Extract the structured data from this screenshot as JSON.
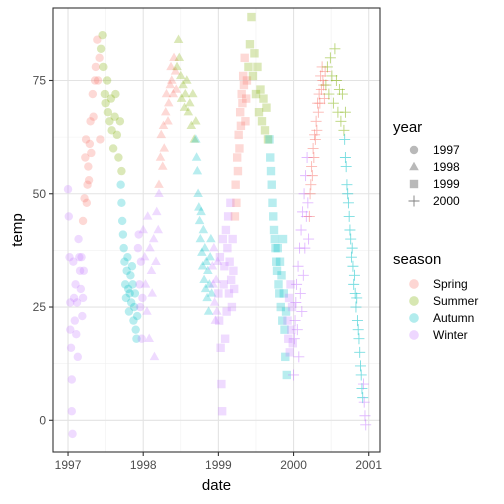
{
  "chart_data": {
    "type": "scatter",
    "xlabel": "date",
    "ylabel": "temp",
    "x_ticks": [
      "1997",
      "1998",
      "1999",
      "2000",
      "2001"
    ],
    "y_ticks": [
      0,
      25,
      50,
      75
    ],
    "xlim": [
      1996.8,
      2001.15
    ],
    "ylim": [
      -7,
      91
    ],
    "grid": true,
    "point_opacity": 0.28,
    "legend_position": "right",
    "shape_legend": {
      "title": "year",
      "entries": [
        {
          "label": "1997",
          "shape": "circle"
        },
        {
          "label": "1998",
          "shape": "triangle"
        },
        {
          "label": "1999",
          "shape": "square"
        },
        {
          "label": "2000",
          "shape": "plus"
        }
      ]
    },
    "color_legend": {
      "title": "season",
      "entries": [
        {
          "label": "Spring",
          "color": "#F8766D"
        },
        {
          "label": "Summer",
          "color": "#7CAE00"
        },
        {
          "label": "Autumn",
          "color": "#00BFC4"
        },
        {
          "label": "Winter",
          "color": "#C77CFF"
        }
      ]
    },
    "series": [
      {
        "year": "1997",
        "season": "Winter",
        "shape": "circle",
        "color": "#C77CFF",
        "x": [
          1997.0,
          1997.01,
          1997.02,
          1997.03,
          1997.03,
          1997.04,
          1997.05,
          1997.05,
          1997.06,
          1997.07,
          1997.08,
          1997.09,
          1997.1,
          1997.11,
          1997.12,
          1997.13,
          1997.14,
          1997.15,
          1997.16,
          1997.17,
          1997.18,
          1997.19,
          1997.2,
          1997.21
        ],
        "y": [
          51,
          45,
          36,
          26,
          20,
          16,
          9,
          2,
          -3,
          35,
          27,
          22,
          30,
          19,
          26,
          14,
          40,
          36,
          33,
          29,
          36,
          23,
          27,
          33
        ]
      },
      {
        "year": "1997",
        "season": "Spring",
        "shape": "circle",
        "color": "#F8766D",
        "x": [
          1997.2,
          1997.22,
          1997.23,
          1997.24,
          1997.25,
          1997.26,
          1997.27,
          1997.28,
          1997.29,
          1997.3,
          1997.31,
          1997.33,
          1997.34,
          1997.36,
          1997.37,
          1997.39,
          1997.4,
          1997.42,
          1997.43
        ],
        "y": [
          44,
          49,
          58,
          62,
          48,
          52,
          56,
          53,
          61,
          66,
          59,
          72,
          67,
          75,
          78,
          84,
          75,
          80,
          62
        ]
      },
      {
        "year": "1997",
        "season": "Summer",
        "shape": "circle",
        "color": "#7CAE00",
        "x": [
          1997.44,
          1997.46,
          1997.47,
          1997.49,
          1997.5,
          1997.52,
          1997.53,
          1997.55,
          1997.57,
          1997.58,
          1997.6,
          1997.62,
          1997.63,
          1997.65,
          1997.67,
          1997.69,
          1997.71
        ],
        "y": [
          82,
          85,
          78,
          72,
          70,
          75,
          68,
          66,
          71,
          64,
          60,
          67,
          72,
          63,
          58,
          66,
          55
        ]
      },
      {
        "year": "1997",
        "season": "Autumn",
        "shape": "circle",
        "color": "#00BFC4",
        "x": [
          1997.7,
          1997.71,
          1997.72,
          1997.73,
          1997.74,
          1997.75,
          1997.76,
          1997.77,
          1997.78,
          1997.79,
          1997.8,
          1997.81,
          1997.82,
          1997.83,
          1997.84,
          1997.85,
          1997.86,
          1997.87,
          1997.88,
          1997.89,
          1997.9,
          1997.91,
          1997.92
        ],
        "y": [
          52,
          48,
          44,
          41,
          38,
          35,
          30,
          27,
          33,
          36,
          29,
          24,
          28,
          32,
          26,
          34,
          30,
          22,
          25,
          28,
          20,
          18,
          23
        ]
      },
      {
        "year": "1997",
        "season": "Winter",
        "shape": "circle",
        "color": "#C77CFF",
        "x": [
          1997.93,
          1997.94,
          1997.95,
          1997.96,
          1997.97,
          1997.98,
          1997.99
        ],
        "y": [
          38,
          41,
          30,
          25,
          35,
          18,
          27
        ]
      },
      {
        "year": "1998",
        "season": "Winter",
        "shape": "triangle",
        "color": "#C77CFF",
        "x": [
          1998.0,
          1998.02,
          1998.03,
          1998.05,
          1998.06,
          1998.08,
          1998.09,
          1998.11,
          1998.12,
          1998.14,
          1998.15,
          1998.17,
          1998.18,
          1998.2,
          1998.21
        ],
        "y": [
          42,
          36,
          30,
          24,
          45,
          18,
          38,
          33,
          28,
          40,
          14,
          35,
          46,
          42,
          50
        ]
      },
      {
        "year": "1998",
        "season": "Spring",
        "shape": "triangle",
        "color": "#F8766D",
        "x": [
          1998.21,
          1998.23,
          1998.24,
          1998.26,
          1998.27,
          1998.28,
          1998.3,
          1998.31,
          1998.33,
          1998.34,
          1998.36,
          1998.37,
          1998.38,
          1998.4,
          1998.41,
          1998.43,
          1998.44
        ],
        "y": [
          52,
          58,
          63,
          56,
          65,
          60,
          68,
          72,
          66,
          70,
          74,
          78,
          75,
          72,
          80,
          77,
          73
        ]
      },
      {
        "year": "1998",
        "season": "Summer",
        "shape": "triangle",
        "color": "#7CAE00",
        "x": [
          1998.45,
          1998.47,
          1998.48,
          1998.5,
          1998.51,
          1998.53,
          1998.55,
          1998.56,
          1998.58,
          1998.6,
          1998.62,
          1998.64,
          1998.66,
          1998.68,
          1998.7
        ],
        "y": [
          78,
          84,
          80,
          76,
          71,
          74,
          69,
          72,
          75,
          68,
          70,
          65,
          72,
          62,
          66
        ]
      },
      {
        "year": "1998",
        "season": "Autumn",
        "shape": "triangle",
        "color": "#00BFC4",
        "x": [
          1998.7,
          1998.71,
          1998.72,
          1998.73,
          1998.74,
          1998.75,
          1998.76,
          1998.77,
          1998.78,
          1998.79,
          1998.8,
          1998.81,
          1998.82,
          1998.83,
          1998.84,
          1998.85,
          1998.86,
          1998.87,
          1998.88,
          1998.89,
          1998.9,
          1998.91
        ],
        "y": [
          62,
          58,
          55,
          50,
          47,
          44,
          40,
          46,
          37,
          34,
          42,
          31,
          38,
          29,
          35,
          27,
          33,
          24,
          30,
          36,
          40,
          28
        ]
      },
      {
        "year": "1998",
        "season": "Winter",
        "shape": "triangle",
        "color": "#C77CFF",
        "x": [
          1998.92,
          1998.93,
          1998.94,
          1998.95,
          1998.96,
          1998.97,
          1998.98,
          1998.99
        ],
        "y": [
          34,
          30,
          38,
          26,
          22,
          31,
          24,
          35
        ]
      },
      {
        "year": "1999",
        "season": "Winter",
        "shape": "square",
        "color": "#C77CFF",
        "x": [
          1999.0,
          1999.01,
          1999.02,
          1999.03,
          1999.04,
          1999.05,
          1999.06,
          1999.07,
          1999.08,
          1999.09,
          1999.1,
          1999.11,
          1999.12,
          1999.13,
          1999.14,
          1999.15,
          1999.16,
          1999.17,
          1999.18,
          1999.19,
          1999.2,
          1999.21
        ],
        "y": [
          28,
          22,
          36,
          16,
          8,
          2,
          40,
          30,
          34,
          18,
          42,
          24,
          38,
          45,
          28,
          35,
          48,
          31,
          25,
          40,
          33,
          29
        ]
      },
      {
        "year": "1999",
        "season": "Spring",
        "shape": "square",
        "color": "#F8766D",
        "x": [
          1999.22,
          1999.23,
          1999.24,
          1999.25,
          1999.26,
          1999.27,
          1999.28,
          1999.29,
          1999.3,
          1999.31,
          1999.32,
          1999.33,
          1999.34,
          1999.35,
          1999.36,
          1999.37,
          1999.38
        ],
        "y": [
          45,
          52,
          48,
          58,
          55,
          63,
          60,
          68,
          65,
          72,
          70,
          76,
          74,
          80,
          66,
          71,
          75
        ]
      },
      {
        "year": "1999",
        "season": "Summer",
        "shape": "square",
        "color": "#7CAE00",
        "x": [
          1999.4,
          1999.42,
          1999.44,
          1999.46,
          1999.48,
          1999.5,
          1999.52,
          1999.54,
          1999.56,
          1999.58,
          1999.6,
          1999.62,
          1999.64,
          1999.66
        ],
        "y": [
          78,
          83,
          89,
          76,
          81,
          72,
          78,
          68,
          73,
          66,
          71,
          64,
          69,
          62
        ]
      },
      {
        "year": "1999",
        "season": "Autumn",
        "shape": "square",
        "color": "#00BFC4",
        "x": [
          1999.68,
          1999.69,
          1999.7,
          1999.71,
          1999.72,
          1999.73,
          1999.74,
          1999.75,
          1999.76,
          1999.77,
          1999.78,
          1999.79,
          1999.8,
          1999.81,
          1999.82,
          1999.83,
          1999.84,
          1999.85,
          1999.86,
          1999.87,
          1999.88,
          1999.89,
          1999.9,
          1999.91
        ],
        "y": [
          62,
          58,
          55,
          52,
          48,
          45,
          42,
          40,
          38,
          35,
          33,
          38,
          30,
          28,
          35,
          25,
          32,
          22,
          40,
          28,
          20,
          14,
          24,
          10
        ]
      },
      {
        "year": "1999",
        "season": "Winter",
        "shape": "square",
        "color": "#C77CFF",
        "x": [
          1999.92,
          1999.93,
          1999.94,
          1999.95,
          1999.96,
          1999.97,
          1999.98,
          1999.99
        ],
        "y": [
          22,
          18,
          27,
          15,
          30,
          20,
          25,
          17
        ]
      },
      {
        "year": "2000",
        "season": "Winter",
        "shape": "plus",
        "color": "#C77CFF",
        "x": [
          2000.0,
          2000.01,
          2000.02,
          2000.03,
          2000.04,
          2000.05,
          2000.06,
          2000.07,
          2000.08,
          2000.09,
          2000.1,
          2000.11,
          2000.12,
          2000.13,
          2000.14,
          2000.15,
          2000.16,
          2000.17,
          2000.18,
          2000.19,
          2000.2
        ],
        "y": [
          10,
          18,
          22,
          26,
          30,
          20,
          34,
          14,
          38,
          28,
          42,
          24,
          46,
          32,
          50,
          38,
          54,
          45,
          58,
          48,
          40
        ]
      },
      {
        "year": "2000",
        "season": "Spring",
        "shape": "plus",
        "color": "#F8766D",
        "x": [
          2000.21,
          2000.22,
          2000.23,
          2000.24,
          2000.25,
          2000.26,
          2000.27,
          2000.28,
          2000.29,
          2000.3,
          2000.31,
          2000.32,
          2000.33,
          2000.34,
          2000.35,
          2000.36,
          2000.37,
          2000.38,
          2000.39,
          2000.4,
          2000.41,
          2000.42
        ],
        "y": [
          45,
          50,
          52,
          56,
          54,
          60,
          58,
          63,
          62,
          66,
          64,
          70,
          68,
          72,
          70,
          76,
          73,
          78,
          75,
          74,
          71,
          77
        ]
      },
      {
        "year": "2000",
        "season": "Summer",
        "shape": "plus",
        "color": "#7CAE00",
        "x": [
          2000.43,
          2000.45,
          2000.47,
          2000.49,
          2000.51,
          2000.53,
          2000.55,
          2000.57,
          2000.59,
          2000.61,
          2000.63,
          2000.65,
          2000.67,
          2000.69
        ],
        "y": [
          74,
          78,
          72,
          80,
          76,
          70,
          82,
          75,
          68,
          73,
          66,
          72,
          64,
          68
        ]
      },
      {
        "year": "2000",
        "season": "Autumn",
        "shape": "plus",
        "color": "#00BFC4",
        "x": [
          2000.68,
          2000.69,
          2000.7,
          2000.71,
          2000.72,
          2000.73,
          2000.74,
          2000.75,
          2000.76,
          2000.77,
          2000.78,
          2000.79,
          2000.8,
          2000.81,
          2000.82,
          2000.83,
          2000.84,
          2000.85,
          2000.86,
          2000.87,
          2000.88,
          2000.89,
          2000.9,
          2000.91,
          2000.92
        ],
        "y": [
          62,
          58,
          56,
          52,
          50,
          48,
          45,
          42,
          40,
          36,
          38,
          34,
          30,
          32,
          28,
          25,
          27,
          22,
          20,
          18,
          15,
          12,
          10,
          7,
          5
        ]
      },
      {
        "year": "2000",
        "season": "Winter",
        "shape": "plus",
        "color": "#C77CFF",
        "x": [
          2000.93,
          2000.94,
          2000.95,
          2000.96
        ],
        "y": [
          8,
          4,
          1,
          -1
        ]
      }
    ]
  }
}
